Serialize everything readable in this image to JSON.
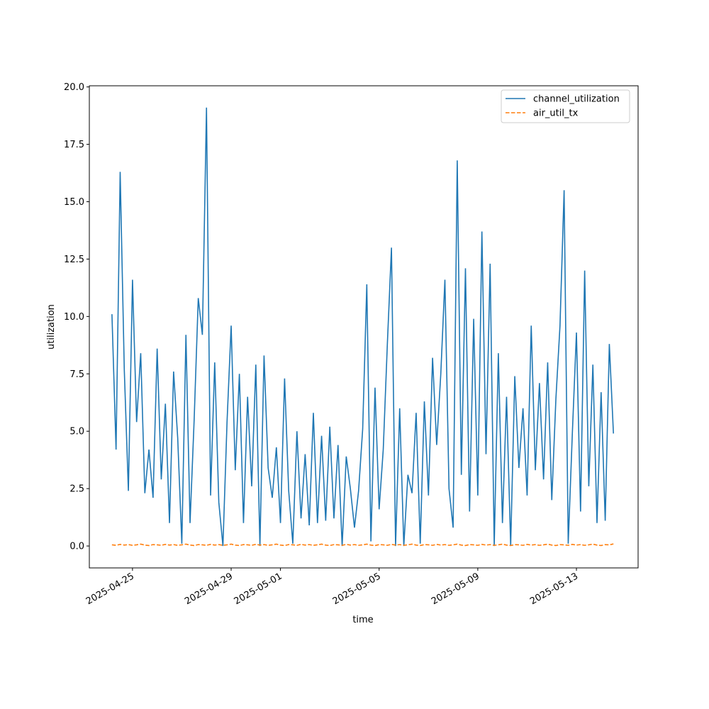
{
  "chart_data": {
    "type": "line",
    "xlabel": "time",
    "ylabel": "utilization",
    "x": [
      "2025-04-24T04:00",
      "2025-04-24T08:00",
      "2025-04-24T12:00",
      "2025-04-24T16:00",
      "2025-04-24T20:00",
      "2025-04-25T00:00",
      "2025-04-25T04:00",
      "2025-04-25T08:00",
      "2025-04-25T12:00",
      "2025-04-25T16:00",
      "2025-04-25T20:00",
      "2025-04-26T00:00",
      "2025-04-26T04:00",
      "2025-04-26T08:00",
      "2025-04-26T12:00",
      "2025-04-26T16:00",
      "2025-04-26T20:00",
      "2025-04-27T00:00",
      "2025-04-27T04:00",
      "2025-04-27T08:00",
      "2025-04-27T12:00",
      "2025-04-27T16:00",
      "2025-04-27T20:00",
      "2025-04-28T00:00",
      "2025-04-28T04:00",
      "2025-04-28T08:00",
      "2025-04-28T12:00",
      "2025-04-28T16:00",
      "2025-04-28T20:00",
      "2025-04-29T00:00",
      "2025-04-29T04:00",
      "2025-04-29T08:00",
      "2025-04-29T12:00",
      "2025-04-29T16:00",
      "2025-04-29T20:00",
      "2025-04-30T00:00",
      "2025-04-30T04:00",
      "2025-04-30T08:00",
      "2025-04-30T12:00",
      "2025-04-30T16:00",
      "2025-04-30T20:00",
      "2025-05-01T00:00",
      "2025-05-01T04:00",
      "2025-05-01T08:00",
      "2025-05-01T12:00",
      "2025-05-01T16:00",
      "2025-05-01T20:00",
      "2025-05-02T00:00",
      "2025-05-02T04:00",
      "2025-05-02T08:00",
      "2025-05-02T12:00",
      "2025-05-02T16:00",
      "2025-05-02T20:00",
      "2025-05-03T00:00",
      "2025-05-03T04:00",
      "2025-05-03T08:00",
      "2025-05-03T12:00",
      "2025-05-03T16:00",
      "2025-05-03T20:00",
      "2025-05-04T00:00",
      "2025-05-04T04:00",
      "2025-05-04T08:00",
      "2025-05-04T12:00",
      "2025-05-04T16:00",
      "2025-05-04T20:00",
      "2025-05-05T00:00",
      "2025-05-05T04:00",
      "2025-05-05T08:00",
      "2025-05-05T12:00",
      "2025-05-05T16:00",
      "2025-05-05T20:00",
      "2025-05-06T00:00",
      "2025-05-06T04:00",
      "2025-05-06T08:00",
      "2025-05-06T12:00",
      "2025-05-06T16:00",
      "2025-05-06T20:00",
      "2025-05-07T00:00",
      "2025-05-07T04:00",
      "2025-05-07T08:00",
      "2025-05-07T12:00",
      "2025-05-07T16:00",
      "2025-05-07T20:00",
      "2025-05-08T00:00",
      "2025-05-08T04:00",
      "2025-05-08T08:00",
      "2025-05-08T12:00",
      "2025-05-08T16:00",
      "2025-05-08T20:00",
      "2025-05-09T00:00",
      "2025-05-09T04:00",
      "2025-05-09T08:00",
      "2025-05-09T12:00",
      "2025-05-09T16:00",
      "2025-05-09T20:00",
      "2025-05-10T00:00",
      "2025-05-10T04:00",
      "2025-05-10T08:00",
      "2025-05-10T12:00",
      "2025-05-10T16:00",
      "2025-05-10T20:00",
      "2025-05-11T00:00",
      "2025-05-11T04:00",
      "2025-05-11T08:00",
      "2025-05-11T12:00",
      "2025-05-11T16:00",
      "2025-05-11T20:00",
      "2025-05-12T00:00",
      "2025-05-12T04:00",
      "2025-05-12T08:00",
      "2025-05-12T12:00",
      "2025-05-12T16:00",
      "2025-05-12T20:00",
      "2025-05-13T00:00",
      "2025-05-13T04:00",
      "2025-05-13T08:00",
      "2025-05-13T12:00",
      "2025-05-13T16:00",
      "2025-05-13T20:00",
      "2025-05-14T00:00",
      "2025-05-14T04:00",
      "2025-05-14T08:00",
      "2025-05-14T12:00"
    ],
    "series": [
      {
        "name": "channel_utilization",
        "color": "#1f77b4",
        "dash": "solid",
        "values": [
          10.1,
          4.2,
          16.3,
          7.7,
          2.4,
          11.6,
          5.4,
          8.4,
          2.3,
          4.2,
          2.1,
          8.6,
          2.9,
          6.2,
          1.0,
          7.6,
          4.7,
          0.1,
          9.2,
          1.0,
          5.5,
          10.8,
          9.2,
          19.1,
          2.2,
          8.0,
          1.9,
          0.0,
          5.4,
          9.6,
          3.3,
          7.5,
          1.0,
          6.5,
          2.6,
          7.9,
          0.0,
          8.3,
          3.4,
          2.1,
          4.3,
          1.0,
          7.3,
          2.4,
          0.1,
          5.0,
          1.2,
          4.0,
          0.9,
          5.8,
          1.0,
          4.8,
          1.1,
          5.2,
          1.2,
          4.4,
          0.0,
          3.9,
          2.5,
          0.8,
          2.4,
          5.1,
          11.4,
          0.2,
          6.9,
          1.6,
          4.2,
          8.8,
          13.0,
          0.0,
          6.0,
          0.0,
          3.1,
          2.3,
          5.8,
          0.1,
          6.3,
          2.2,
          8.2,
          4.4,
          7.5,
          11.6,
          2.5,
          0.8,
          16.8,
          3.1,
          12.1,
          1.5,
          9.9,
          2.2,
          13.7,
          4.0,
          12.3,
          0.0,
          8.4,
          1.0,
          6.5,
          0.0,
          7.4,
          3.4,
          6.0,
          2.2,
          9.6,
          3.3,
          7.1,
          2.9,
          8.0,
          2.0,
          6.4,
          9.6,
          15.5,
          0.1,
          4.9,
          9.3,
          1.5,
          12.0,
          2.6,
          7.9,
          1.0,
          6.7,
          1.1,
          8.8,
          4.9
        ]
      },
      {
        "name": "air_util_tx",
        "color": "#ff7f0e",
        "dash": "dashed",
        "values": [
          0.05,
          0.03,
          0.07,
          0.04,
          0.06,
          0.03,
          0.05,
          0.08,
          0.04,
          0.02,
          0.06,
          0.05,
          0.03,
          0.07,
          0.04,
          0.06,
          0.03,
          0.05,
          0.08,
          0.04,
          0.02,
          0.06,
          0.05,
          0.03,
          0.07,
          0.04,
          0.06,
          0.03,
          0.05,
          0.08,
          0.04,
          0.02,
          0.06,
          0.05,
          0.03,
          0.07,
          0.04,
          0.06,
          0.03,
          0.05,
          0.08,
          0.04,
          0.02,
          0.06,
          0.05,
          0.03,
          0.07,
          0.04,
          0.06,
          0.03,
          0.05,
          0.08,
          0.04,
          0.02,
          0.06,
          0.05,
          0.03,
          0.07,
          0.04,
          0.06,
          0.03,
          0.05,
          0.08,
          0.04,
          0.02,
          0.06,
          0.05,
          0.03,
          0.07,
          0.04,
          0.06,
          0.03,
          0.05,
          0.08,
          0.04,
          0.02,
          0.06,
          0.05,
          0.03,
          0.07,
          0.04,
          0.06,
          0.03,
          0.05,
          0.08,
          0.04,
          0.02,
          0.06,
          0.05,
          0.03,
          0.07,
          0.04,
          0.06,
          0.03,
          0.05,
          0.08,
          0.04,
          0.02,
          0.06,
          0.05,
          0.03,
          0.07,
          0.04,
          0.06,
          0.03,
          0.05,
          0.08,
          0.04,
          0.02,
          0.06,
          0.05,
          0.03,
          0.07,
          0.04,
          0.06,
          0.03,
          0.05,
          0.08,
          0.04,
          0.02,
          0.06,
          0.05,
          0.09
        ]
      }
    ],
    "xlim": [
      "2025-04-23T06:00",
      "2025-05-15T12:00"
    ],
    "xticks": [
      "2025-04-25",
      "2025-04-29",
      "2025-05-01",
      "2025-05-05",
      "2025-05-09",
      "2025-05-13"
    ],
    "ylim": [
      -0.955,
      20.05
    ],
    "yticks": [
      {
        "value": 0,
        "label": "0.0"
      },
      {
        "value": 2.5,
        "label": "2.5"
      },
      {
        "value": 5,
        "label": "5.0"
      },
      {
        "value": 7.5,
        "label": "7.5"
      },
      {
        "value": 10,
        "label": "10.0"
      },
      {
        "value": 12.5,
        "label": "12.5"
      },
      {
        "value": 15,
        "label": "15.0"
      },
      {
        "value": 17.5,
        "label": "17.5"
      },
      {
        "value": 20,
        "label": "20.0"
      }
    ],
    "grid": false,
    "legend": "upper right"
  }
}
